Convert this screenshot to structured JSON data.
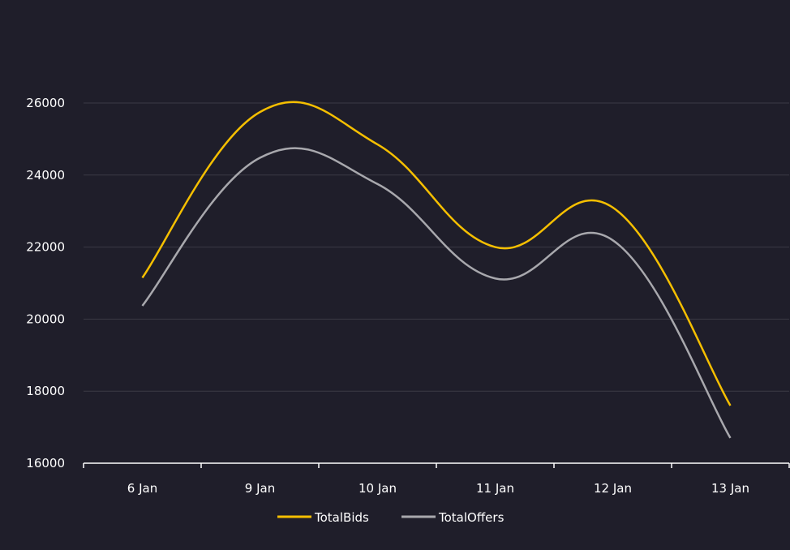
{
  "chart_data": {
    "type": "line",
    "title": "",
    "xlabel": "",
    "ylabel": "",
    "categories": [
      "6 Jan",
      "9 Jan",
      "10 Jan",
      "11 Jan",
      "12 Jan",
      "13 Jan"
    ],
    "ylim": [
      16000,
      26000
    ],
    "yticks": [
      16000,
      18000,
      20000,
      22000,
      24000,
      26000
    ],
    "ytick_labels": [
      "16000",
      "18000",
      "20000",
      "22000",
      "24000",
      "26000"
    ],
    "grid": true,
    "legend_position": "bottom-center",
    "series": [
      {
        "name": "TotalBids",
        "color": "#f5bf00",
        "values": [
          21150,
          25750,
          24850,
          22000,
          23100,
          17600
        ]
      },
      {
        "name": "TotalOffers",
        "color": "#a8a8ad",
        "values": [
          20370,
          24480,
          23750,
          21130,
          22190,
          16700
        ]
      }
    ]
  }
}
